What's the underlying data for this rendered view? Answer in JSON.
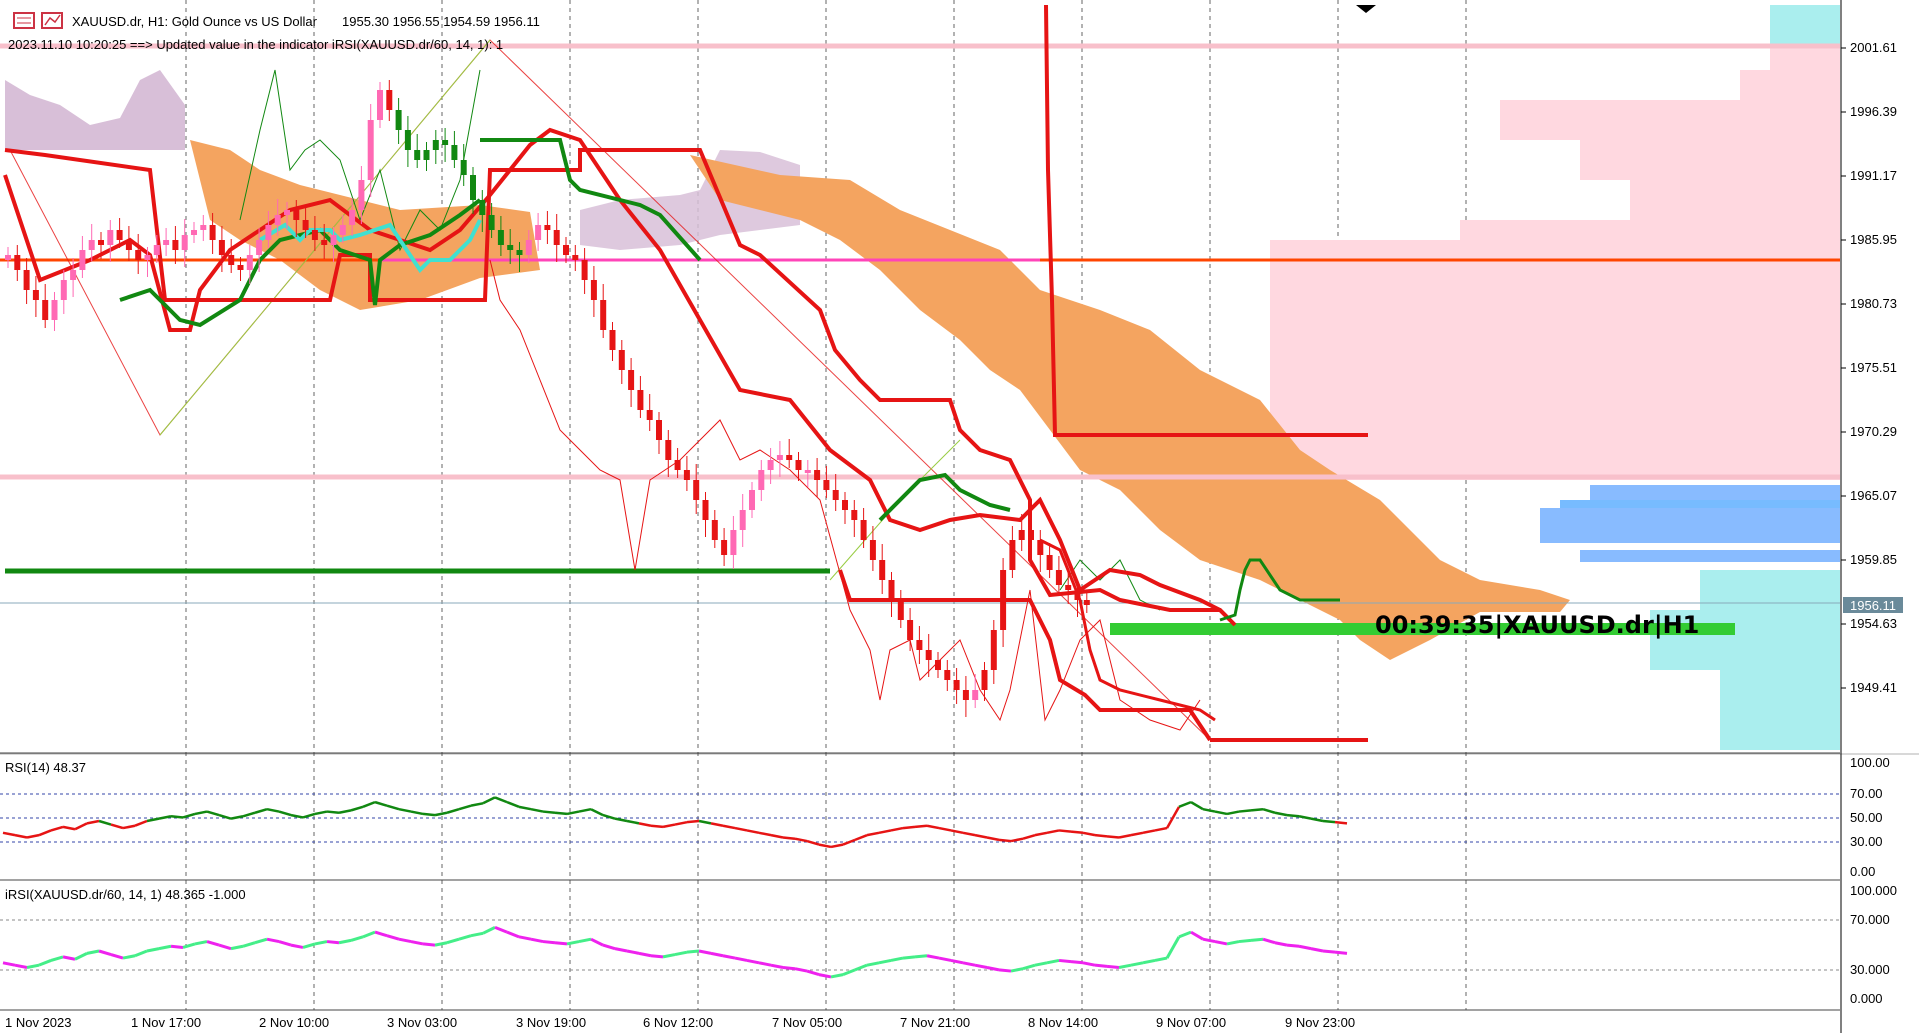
{
  "header": {
    "symbol_line": "XAUUSD.dr, H1:  Gold Ounce vs US Dollar",
    "ohlc": "1955.30 1956.55 1954.59 1956.11",
    "status_line": "2023.11.10 10:20:25 ==>  Updated value in the indicator iRSI(XAUUSD.dr/60, 14, 1): 1"
  },
  "price_axis": {
    "labels": [
      "2001.61",
      "1996.39",
      "1991.17",
      "1985.95",
      "1980.73",
      "1975.51",
      "1970.29",
      "1965.07",
      "1959.85",
      "1954.63",
      "1949.41"
    ],
    "current_price": "1956.11"
  },
  "countdown_label": "00:39:35|XAUUSD.dr|H1",
  "rsi_panel": {
    "title": "RSI(14) 48.37",
    "levels": [
      "100.00",
      "70.00",
      "50.00",
      "30.00",
      "0.00"
    ]
  },
  "irsi_panel": {
    "title": "iRSI(XAUUSD.dr/60, 14, 1) 48.365 -1.000",
    "levels": [
      "100.000",
      "70.000",
      "30.000",
      "0.000"
    ]
  },
  "time_axis": {
    "labels": [
      "1 Nov 2023",
      "1 Nov 17:00",
      "2 Nov 10:00",
      "3 Nov 03:00",
      "3 Nov 19:00",
      "6 Nov 12:00",
      "7 Nov 05:00",
      "7 Nov 21:00",
      "8 Nov 14:00",
      "9 Nov 07:00",
      "9 Nov 23:00"
    ]
  },
  "colors": {
    "bull": "#ff69b4",
    "bear": "#e61414",
    "kumo_bull": "#d8bfd8",
    "kumo_bear": "#f4a460",
    "rsi_up": "#00aa00",
    "rsi_down": "#e61414",
    "irsi_up": "#44ee88",
    "irsi_down": "#ee22ee"
  },
  "icons": [
    "chart-window-icon",
    "indicator-icon",
    "scroll-marker-icon"
  ]
}
